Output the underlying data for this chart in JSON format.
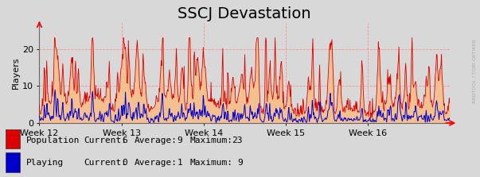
{
  "title": "SSCJ Devastation",
  "ylabel": "Players",
  "xlabel_ticks": [
    "Week 12",
    "Week 13",
    "Week 14",
    "Week 15",
    "Week 16"
  ],
  "ylim": [
    0,
    27
  ],
  "yticks": [
    0,
    10,
    20
  ],
  "bg_color": "#d8d8d8",
  "plot_bg_color": "#d8d8d8",
  "grid_color": "#ff8888",
  "pop_fill_color": "#f5c090",
  "pop_line_color": "#dd0000",
  "play_line_color": "#0000cc",
  "watermark": "RRDTOOL / TOBI OETIKER",
  "legend_pop_label": "Population",
  "legend_play_label": "Playing",
  "legend_pop_current": 6,
  "legend_pop_average": 9,
  "legend_pop_maximum": 23,
  "legend_play_current": 0,
  "legend_play_average": 1,
  "legend_play_maximum": 9,
  "n_points": 840,
  "title_fontsize": 14,
  "legend_fontsize": 8,
  "axis_fontsize": 8
}
